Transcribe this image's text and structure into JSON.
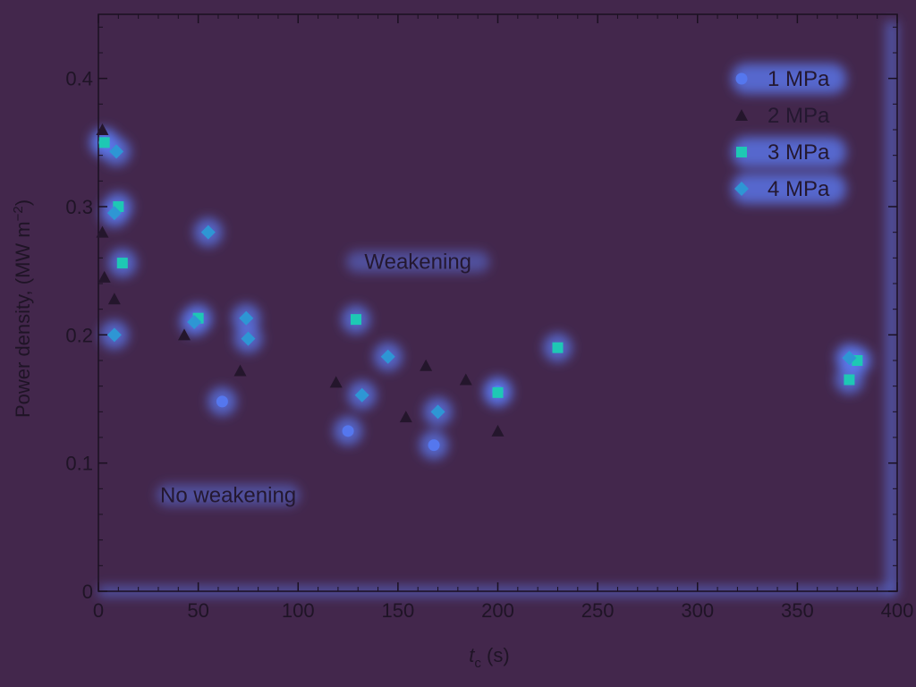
{
  "chart_data": {
    "type": "scatter",
    "title": "",
    "xlabel_main": "t",
    "xlabel_sub": "c",
    "xlabel_unit": " (s)",
    "ylabel_main": "Power density, (MW m",
    "ylabel_sup": "−2",
    "ylabel_end": ")",
    "xlim": [
      0,
      400
    ],
    "ylim": [
      0,
      0.45
    ],
    "xticks": [
      0,
      50,
      100,
      150,
      200,
      250,
      300,
      350,
      400
    ],
    "yticks": [
      0,
      0.1,
      0.2,
      0.3,
      0.4
    ],
    "xtick_labels": [
      "0",
      "50",
      "100",
      "150",
      "200",
      "250",
      "300",
      "350",
      "400"
    ],
    "ytick_labels": [
      "0",
      "0.1",
      "0.2",
      "0.3",
      "0.4"
    ],
    "grid": false,
    "legend_position": "top-right",
    "annotations": [
      {
        "text": "Weakening",
        "x": 160,
        "y": 0.257
      },
      {
        "text": "No weakening",
        "x": 65,
        "y": 0.075
      }
    ],
    "series": [
      {
        "name": "1 MPa",
        "marker": "circle",
        "color": "#5577ee",
        "points": [
          [
            3,
            0.35
          ],
          [
            62,
            0.148
          ],
          [
            125,
            0.125
          ],
          [
            168,
            0.114
          ],
          [
            200,
            0.156
          ],
          [
            378,
            0.18
          ]
        ]
      },
      {
        "name": "2 MPa",
        "marker": "triangle",
        "color": "#24162c",
        "points": [
          [
            2,
            0.36
          ],
          [
            2,
            0.28
          ],
          [
            3,
            0.245
          ],
          [
            8,
            0.228
          ],
          [
            43,
            0.2
          ],
          [
            71,
            0.172
          ],
          [
            119,
            0.163
          ],
          [
            154,
            0.136
          ],
          [
            164,
            0.176
          ],
          [
            184,
            0.165
          ],
          [
            200,
            0.125
          ]
        ]
      },
      {
        "name": "3 MPa",
        "marker": "square",
        "color": "#1ec8b4",
        "points": [
          [
            3,
            0.35
          ],
          [
            10,
            0.3
          ],
          [
            12,
            0.256
          ],
          [
            50,
            0.213
          ],
          [
            129,
            0.212
          ],
          [
            200,
            0.155
          ],
          [
            230,
            0.19
          ],
          [
            376,
            0.165
          ],
          [
            380,
            0.18
          ]
        ]
      },
      {
        "name": "4 MPa",
        "marker": "diamond",
        "color": "#2e96d4",
        "points": [
          [
            9,
            0.343
          ],
          [
            8,
            0.295
          ],
          [
            8,
            0.2
          ],
          [
            55,
            0.28
          ],
          [
            48,
            0.21
          ],
          [
            74,
            0.213
          ],
          [
            75,
            0.197
          ],
          [
            145,
            0.183
          ],
          [
            132,
            0.153
          ],
          [
            170,
            0.14
          ],
          [
            376,
            0.182
          ]
        ]
      }
    ]
  }
}
